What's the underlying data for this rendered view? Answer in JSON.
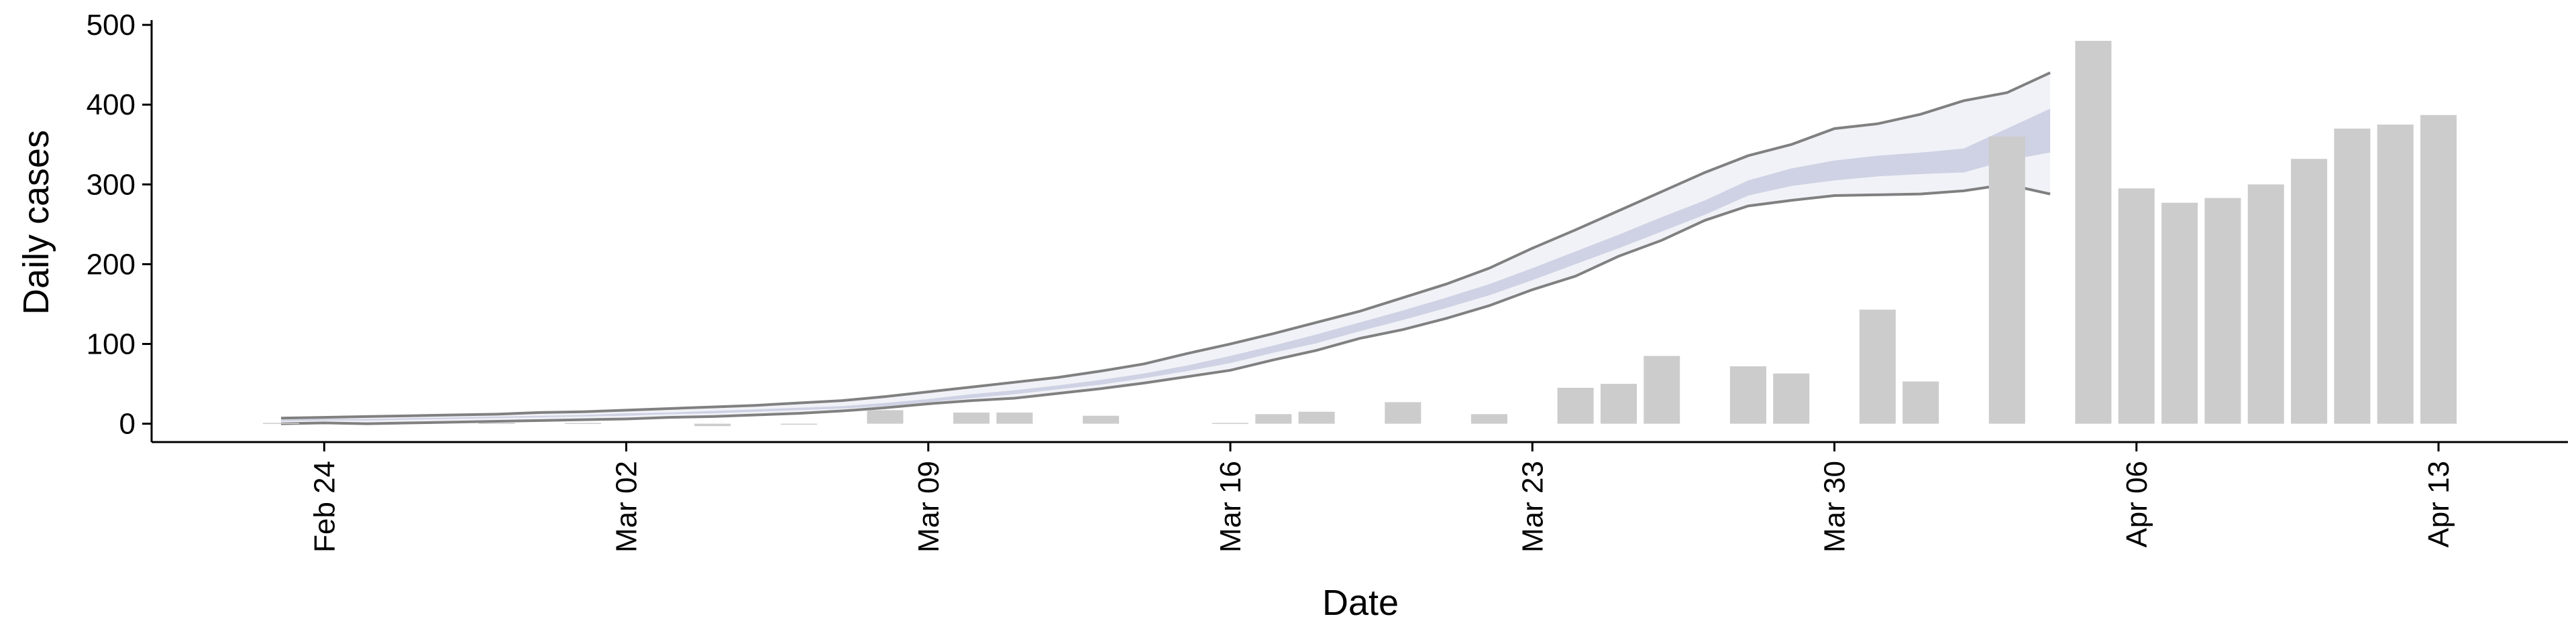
{
  "chart_data": {
    "type": "bar",
    "x_label": "Date",
    "y_label": "Daily cases",
    "categories": [
      "Feb 20",
      "Feb 21",
      "Feb 22",
      "Feb 23",
      "Feb 24",
      "Feb 25",
      "Feb 26",
      "Feb 27",
      "Feb 28",
      "Feb 29",
      "Mar 01",
      "Mar 02",
      "Mar 03",
      "Mar 04",
      "Mar 05",
      "Mar 06",
      "Mar 07",
      "Mar 08",
      "Mar 09",
      "Mar 10",
      "Mar 11",
      "Mar 12",
      "Mar 13",
      "Mar 14",
      "Mar 15",
      "Mar 16",
      "Mar 17",
      "Mar 18",
      "Mar 19",
      "Mar 20",
      "Mar 21",
      "Mar 22",
      "Mar 23",
      "Mar 24",
      "Mar 25",
      "Mar 26",
      "Mar 27",
      "Mar 28",
      "Mar 29",
      "Mar 30",
      "Mar 31",
      "Apr 01",
      "Apr 02",
      "Apr 03",
      "Apr 04",
      "Apr 05",
      "Apr 06",
      "Apr 07",
      "Apr 08",
      "Apr 09",
      "Apr 10",
      "Apr 11",
      "Apr 12",
      "Apr 13",
      "Apr 14",
      "Apr 15",
      "Apr 16"
    ],
    "values": [
      null,
      null,
      null,
      1,
      null,
      null,
      null,
      null,
      1,
      null,
      1,
      null,
      null,
      -3,
      null,
      -1,
      null,
      17,
      null,
      14,
      14,
      null,
      10,
      null,
      null,
      1,
      12,
      15,
      null,
      27,
      null,
      12,
      null,
      45,
      50,
      85,
      null,
      72,
      63,
      null,
      143,
      53,
      null,
      360,
      null,
      480,
      295,
      277,
      283,
      300,
      332,
      370,
      375,
      387,
      null,
      null,
      null
    ],
    "color": "#cccccc",
    "bands": [
      {
        "color": "#eef0f6",
        "edge_color": "#808080",
        "lower": [
          null,
          null,
          null,
          0,
          1,
          0,
          1,
          2,
          3,
          4,
          5,
          6,
          8,
          9,
          11,
          13,
          16,
          20,
          25,
          29,
          32,
          38,
          44,
          51,
          59,
          67,
          80,
          92,
          107,
          118,
          132,
          148,
          168,
          185,
          210,
          230,
          255,
          273,
          280,
          286,
          287,
          288,
          292,
          300,
          288,
          null,
          null,
          null,
          null,
          null,
          null,
          null,
          null,
          null,
          null,
          null,
          null
        ],
        "upper": [
          null,
          null,
          null,
          7,
          8,
          9,
          10,
          11,
          12,
          14,
          15,
          17,
          19,
          21,
          23,
          26,
          29,
          34,
          40,
          46,
          52,
          58,
          66,
          75,
          88,
          100,
          113,
          127,
          141,
          158,
          175,
          195,
          220,
          243,
          267,
          291,
          315,
          336,
          350,
          370,
          376,
          388,
          405,
          415,
          440,
          null,
          null,
          null,
          null,
          null,
          null,
          null,
          null,
          null,
          null,
          null,
          null
        ]
      },
      {
        "color": "#c9cde0",
        "lower": [
          null,
          null,
          null,
          3,
          4,
          4,
          5,
          6,
          7,
          8,
          9,
          10,
          12,
          13,
          15,
          17,
          19,
          22,
          27,
          32,
          37,
          43,
          49,
          57,
          66,
          76,
          89,
          101,
          116,
          130,
          145,
          161,
          180,
          200,
          220,
          241,
          262,
          286,
          298,
          305,
          310,
          313,
          315,
          330,
          340,
          null,
          null,
          null,
          null,
          null,
          null,
          null,
          null,
          null,
          null,
          null,
          null
        ],
        "upper": [
          null,
          null,
          null,
          5,
          6,
          6,
          7,
          8,
          9,
          10,
          11,
          13,
          14,
          16,
          18,
          20,
          22,
          26,
          31,
          37,
          42,
          48,
          55,
          63,
          73,
          85,
          98,
          112,
          127,
          142,
          158,
          175,
          195,
          216,
          237,
          259,
          280,
          305,
          320,
          330,
          336,
          340,
          345,
          370,
          395,
          null,
          null,
          null,
          null,
          null,
          null,
          null,
          null,
          null,
          null,
          null,
          null
        ]
      }
    ],
    "xticks": [
      "Feb 24",
      "Mar 02",
      "Mar 09",
      "Mar 16",
      "Mar 23",
      "Mar 30",
      "Apr 06",
      "Apr 13"
    ],
    "ylim": [
      -23,
      506
    ],
    "yticks": [
      0,
      100,
      200,
      300,
      400,
      500
    ],
    "grid": false
  }
}
